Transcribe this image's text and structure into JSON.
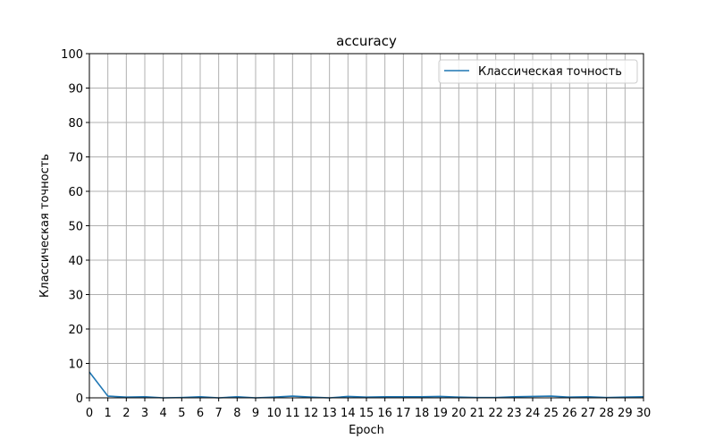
{
  "chart_data": {
    "type": "line",
    "title": "accuracy",
    "xlabel": "Epoch",
    "ylabel": "Классическая точность",
    "xlim": [
      0,
      30
    ],
    "ylim": [
      0,
      100
    ],
    "x_ticks": [
      0,
      1,
      2,
      3,
      4,
      5,
      6,
      7,
      8,
      9,
      10,
      11,
      12,
      13,
      14,
      15,
      16,
      17,
      18,
      19,
      20,
      21,
      22,
      23,
      24,
      25,
      26,
      27,
      28,
      29,
      30
    ],
    "y_ticks": [
      0,
      10,
      20,
      30,
      40,
      50,
      60,
      70,
      80,
      90,
      100
    ],
    "grid": true,
    "legend_position": "upper right",
    "series": [
      {
        "name": "Классическая точность",
        "color": "#1f77b4",
        "x": [
          0,
          1,
          2,
          3,
          4,
          5,
          6,
          7,
          8,
          9,
          10,
          11,
          12,
          13,
          14,
          15,
          16,
          17,
          18,
          19,
          20,
          21,
          22,
          23,
          24,
          25,
          26,
          27,
          28,
          29,
          30
        ],
        "y": [
          7.5,
          0.5,
          0.2,
          0.3,
          0.0,
          0.1,
          0.3,
          0.0,
          0.3,
          0.0,
          0.2,
          0.5,
          0.2,
          0.0,
          0.4,
          0.2,
          0.3,
          0.3,
          0.3,
          0.4,
          0.2,
          0.1,
          0.1,
          0.3,
          0.4,
          0.5,
          0.2,
          0.3,
          0.1,
          0.2,
          0.3
        ]
      }
    ]
  }
}
